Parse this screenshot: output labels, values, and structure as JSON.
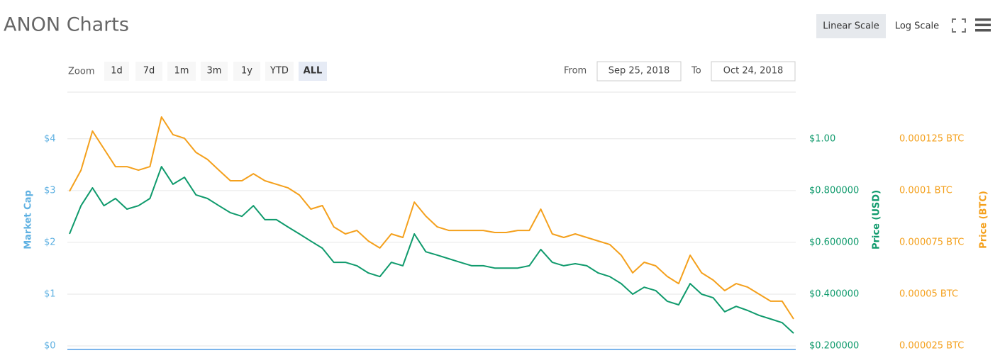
{
  "controls": {
    "title": "ANON Charts",
    "scale_buttons": [
      "Linear Scale",
      "Log Scale"
    ],
    "zoom_label": "Zoom",
    "zoom_buttons": [
      "1d",
      "7d",
      "1m",
      "3m",
      "1y",
      "YTD",
      "ALL"
    ],
    "from_label": "From",
    "from_date": "Sep 25, 2018",
    "to_label": "To",
    "to_date": "Oct 24, 2018"
  },
  "chart_data": {
    "type": "line",
    "ylabel": "Market Cap",
    "ylabel_color": "#5fb1e2",
    "ylim": [
      0,
      4.9
    ],
    "yticks": [
      {
        "value": 0,
        "label": "$0"
      },
      {
        "value": 1,
        "label": "$1"
      },
      {
        "value": 2,
        "label": "$2"
      },
      {
        "value": 3,
        "label": "$3"
      },
      {
        "value": 4,
        "label": "$4"
      }
    ],
    "y2label": "Price (USD)",
    "y2lim": [
      0.2,
      1.181
    ],
    "y2ticks": [
      {
        "value": 0.2,
        "label": "$0.200000"
      },
      {
        "value": 0.4,
        "label": "$0.400000"
      },
      {
        "value": 0.6,
        "label": "$0.600000"
      },
      {
        "value": 0.8,
        "label": "$0.800000"
      },
      {
        "value": 1.0,
        "label": "$1.00"
      }
    ],
    "y3label": "Price (BTC)",
    "y3lim": [
      2.5e-05,
      0.0001476
    ],
    "y3ticks": [
      {
        "value": 2.5e-05,
        "label": "0.000025 BTC"
      },
      {
        "value": 5e-05,
        "label": "0.00005 BTC"
      },
      {
        "value": 7.5e-05,
        "label": "0.000075 BTC"
      },
      {
        "value": 0.0001,
        "label": "0.0001 BTC"
      },
      {
        "value": 0.000125,
        "label": "0.000125 BTC"
      }
    ],
    "grid": true,
    "series": [
      {
        "name": "Price (USD)",
        "axis": "y2",
        "color": "#0f9a6c",
        "values": [
          0.633,
          0.742,
          0.811,
          0.742,
          0.77,
          0.729,
          0.742,
          0.77,
          0.893,
          0.825,
          0.852,
          0.784,
          0.77,
          0.742,
          0.715,
          0.701,
          0.742,
          0.688,
          0.688,
          0.66,
          0.633,
          0.605,
          0.578,
          0.523,
          0.523,
          0.51,
          0.482,
          0.468,
          0.523,
          0.51,
          0.633,
          0.564,
          0.551,
          0.537,
          0.523,
          0.51,
          0.51,
          0.501,
          0.501,
          0.501,
          0.51,
          0.573,
          0.523,
          0.51,
          0.518,
          0.51,
          0.482,
          0.468,
          0.441,
          0.4,
          0.427,
          0.414,
          0.373,
          0.359,
          0.441,
          0.4,
          0.386,
          0.332,
          0.353,
          0.337,
          0.318,
          0.304,
          0.29,
          0.249
        ]
      },
      {
        "name": "Price (BTC)",
        "axis": "y3",
        "color": "#f4a01c",
        "values": [
          9.97e-05,
          0.0001099,
          0.0001288,
          0.0001202,
          0.0001116,
          0.0001116,
          0.0001099,
          0.0001116,
          0.0001356,
          0.0001271,
          0.0001253,
          0.0001185,
          0.0001151,
          0.0001099,
          0.0001048,
          0.0001048,
          0.0001082,
          0.0001048,
          0.0001031,
          0.0001014,
          9.79e-05,
          9.11e-05,
          9.28e-05,
          8.25e-05,
          7.91e-05,
          8.08e-05,
          7.57e-05,
          7.23e-05,
          7.91e-05,
          7.74e-05,
          9.45e-05,
          8.77e-05,
          8.25e-05,
          8.08e-05,
          8.08e-05,
          8.08e-05,
          8.08e-05,
          7.98e-05,
          7.98e-05,
          8.08e-05,
          8.08e-05,
          9.11e-05,
          7.91e-05,
          7.74e-05,
          7.91e-05,
          7.74e-05,
          7.57e-05,
          7.4e-05,
          6.88e-05,
          6.03e-05,
          6.54e-05,
          6.37e-05,
          5.86e-05,
          5.51e-05,
          6.88e-05,
          6.03e-05,
          5.68e-05,
          5.17e-05,
          5.51e-05,
          5.34e-05,
          5e-05,
          4.66e-05,
          4.66e-05,
          3.8e-05
        ]
      }
    ]
  }
}
